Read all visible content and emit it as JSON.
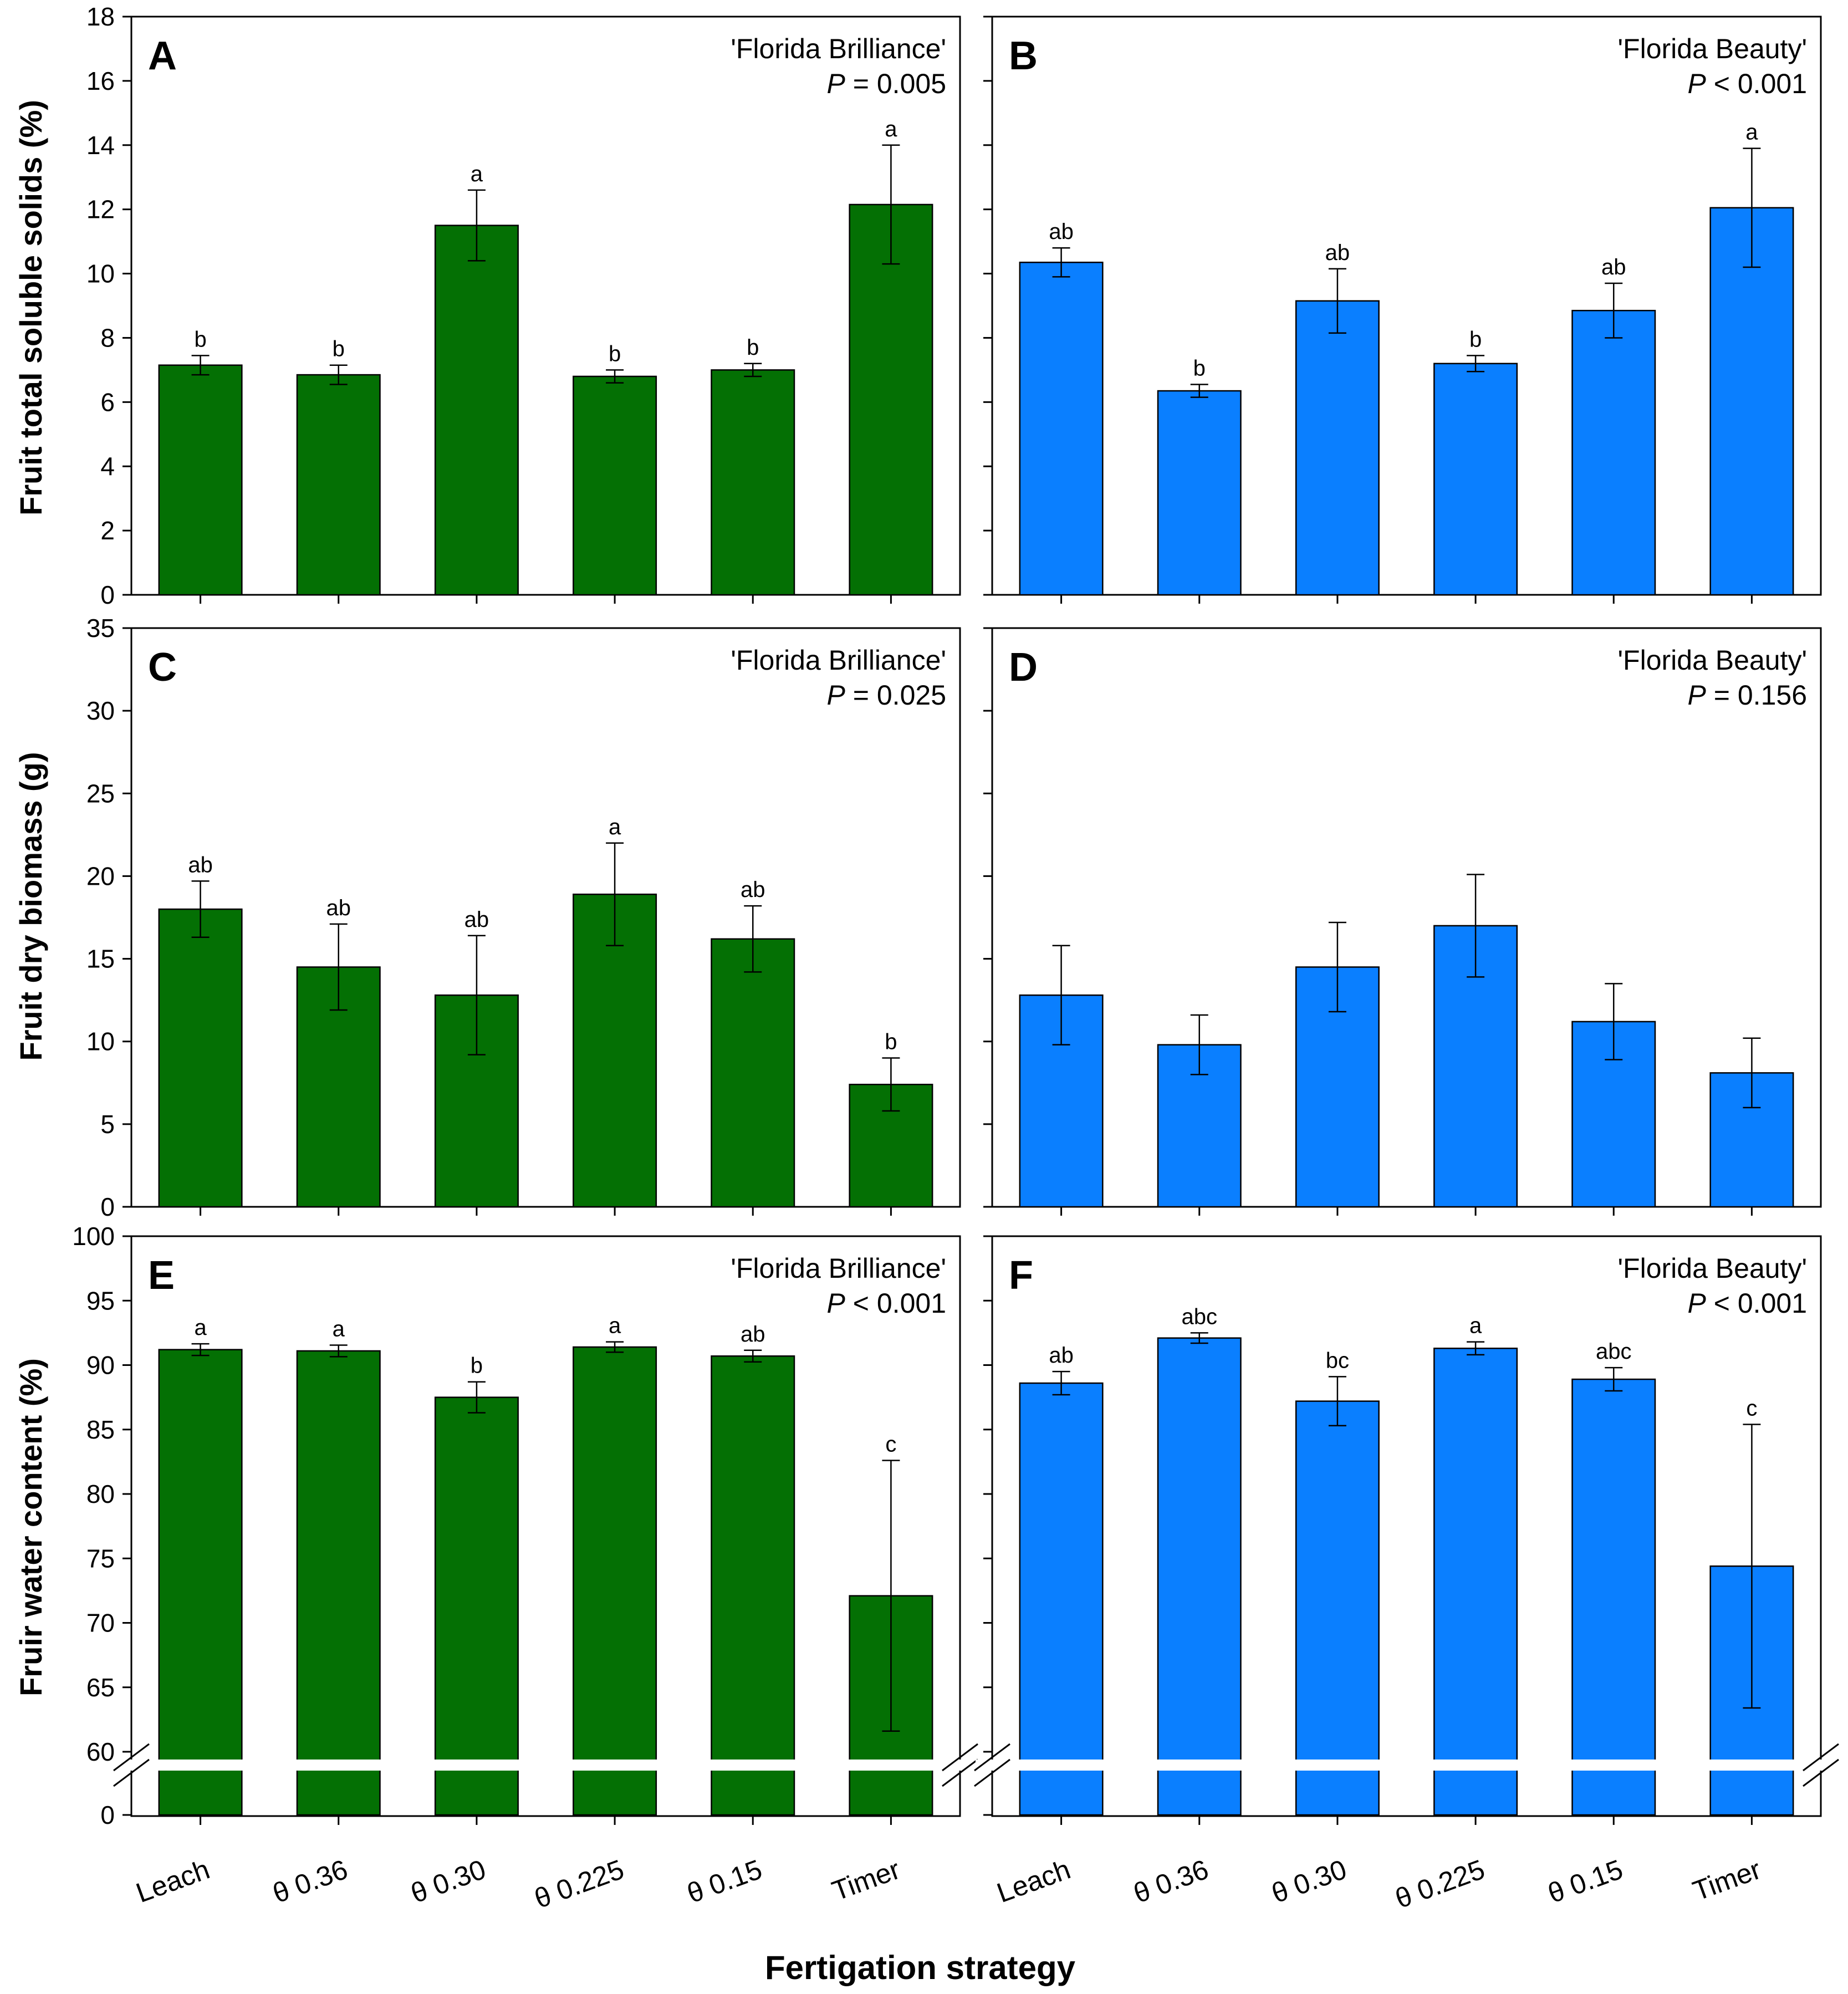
{
  "figure": {
    "xlabel": "Fertigation strategy",
    "row_ylabels": [
      "Fruit total soluble solids (%)",
      "Fruit dry biomass (g)",
      "Fruir water content (%)"
    ]
  },
  "colors": {
    "green": "#047004",
    "blue": "#0A7FFF",
    "axis": "#000000"
  },
  "chart_data": [
    {
      "type": "bar",
      "panel": "A",
      "title": "'Florida Brilliance'",
      "pvalue": {
        "italic": "P",
        "text": " = 0.005"
      },
      "ylabel": "Fruit total soluble solids (%)",
      "ylim": [
        0,
        18
      ],
      "yticks": [
        "0",
        "2",
        "4",
        "6",
        "8",
        "10",
        "12",
        "14",
        "16",
        "18"
      ],
      "categories": [
        "Leach",
        "θ 0.36",
        "θ 0.30",
        "θ 0.225",
        "θ 0.15",
        "Timer"
      ],
      "values": [
        7.15,
        6.85,
        11.5,
        6.8,
        7.0,
        12.15
      ],
      "errors": [
        0.3,
        0.3,
        1.1,
        0.2,
        0.2,
        1.85
      ],
      "letters": [
        "b",
        "b",
        "a",
        "b",
        "b",
        "a"
      ],
      "color": "green"
    },
    {
      "type": "bar",
      "panel": "B",
      "title": "'Florida Beauty'",
      "pvalue": {
        "italic": "P",
        "text": " < 0.001"
      },
      "ylabel": "",
      "ylim": [
        0,
        18
      ],
      "yticks": [],
      "categories": [
        "Leach",
        "θ 0.36",
        "θ 0.30",
        "θ 0.225",
        "θ 0.15",
        "Timer"
      ],
      "values": [
        10.35,
        6.35,
        9.15,
        7.2,
        8.85,
        12.05
      ],
      "errors": [
        0.45,
        0.2,
        1.0,
        0.25,
        0.85,
        1.85
      ],
      "letters": [
        "ab",
        "b",
        "ab",
        "b",
        "ab",
        "a"
      ],
      "color": "blue"
    },
    {
      "type": "bar",
      "panel": "C",
      "title": "'Florida Brilliance'",
      "pvalue": {
        "italic": "P",
        "text": " = 0.025"
      },
      "ylabel": "Fruit dry biomass (g)",
      "ylim": [
        0,
        35
      ],
      "yticks": [
        "0",
        "5",
        "10",
        "15",
        "20",
        "25",
        "30",
        "35"
      ],
      "categories": [
        "Leach",
        "θ 0.36",
        "θ 0.30",
        "θ 0.225",
        "θ 0.15",
        "Timer"
      ],
      "values": [
        18.0,
        14.5,
        12.8,
        18.9,
        16.2,
        7.4
      ],
      "errors": [
        1.7,
        2.6,
        3.6,
        3.1,
        2.0,
        1.6
      ],
      "letters": [
        "ab",
        "ab",
        "ab",
        "a",
        "ab",
        "b"
      ],
      "color": "green"
    },
    {
      "type": "bar",
      "panel": "D",
      "title": "'Florida Beauty'",
      "pvalue": {
        "italic": "P",
        "text": " = 0.156"
      },
      "ylabel": "",
      "ylim": [
        0,
        35
      ],
      "yticks": [],
      "categories": [
        "Leach",
        "θ 0.36",
        "θ 0.30",
        "θ 0.225",
        "θ 0.15",
        "Timer"
      ],
      "values": [
        12.8,
        9.8,
        14.5,
        17.0,
        11.2,
        8.1
      ],
      "errors": [
        3.0,
        1.8,
        2.7,
        3.1,
        2.3,
        2.1
      ],
      "letters": [
        "",
        "",
        "",
        "",
        "",
        ""
      ],
      "color": "blue"
    },
    {
      "type": "bar",
      "panel": "E",
      "title": "'Florida Brilliance'",
      "pvalue": {
        "italic": "P",
        "text": " < 0.001"
      },
      "ylabel": "Fruir water content (%)",
      "ylim": [
        60,
        100
      ],
      "axis_break": true,
      "yticks": [
        "60",
        "65",
        "70",
        "75",
        "80",
        "85",
        "90",
        "95",
        "100"
      ],
      "ybreak_tick": "0",
      "categories": [
        "Leach",
        "θ 0.36",
        "θ 0.30",
        "θ 0.225",
        "θ 0.15",
        "Timer"
      ],
      "values": [
        91.2,
        91.1,
        87.5,
        91.4,
        90.7,
        72.1
      ],
      "errors": [
        0.45,
        0.45,
        1.2,
        0.4,
        0.45,
        10.5
      ],
      "letters": [
        "a",
        "a",
        "b",
        "a",
        "ab",
        "c"
      ],
      "color": "green"
    },
    {
      "type": "bar",
      "panel": "F",
      "title": "'Florida Beauty'",
      "pvalue": {
        "italic": "P",
        "text": " < 0.001"
      },
      "ylabel": "",
      "ylim": [
        60,
        100
      ],
      "axis_break": true,
      "yticks": [],
      "categories": [
        "Leach",
        "θ 0.36",
        "θ 0.30",
        "θ 0.225",
        "θ 0.15",
        "Timer"
      ],
      "values": [
        88.6,
        92.1,
        87.2,
        91.3,
        88.9,
        74.4
      ],
      "errors": [
        0.9,
        0.4,
        1.9,
        0.5,
        0.9,
        11.0
      ],
      "letters": [
        "ab",
        "abc",
        "bc",
        "a",
        "abc",
        "c"
      ],
      "color": "blue"
    }
  ]
}
